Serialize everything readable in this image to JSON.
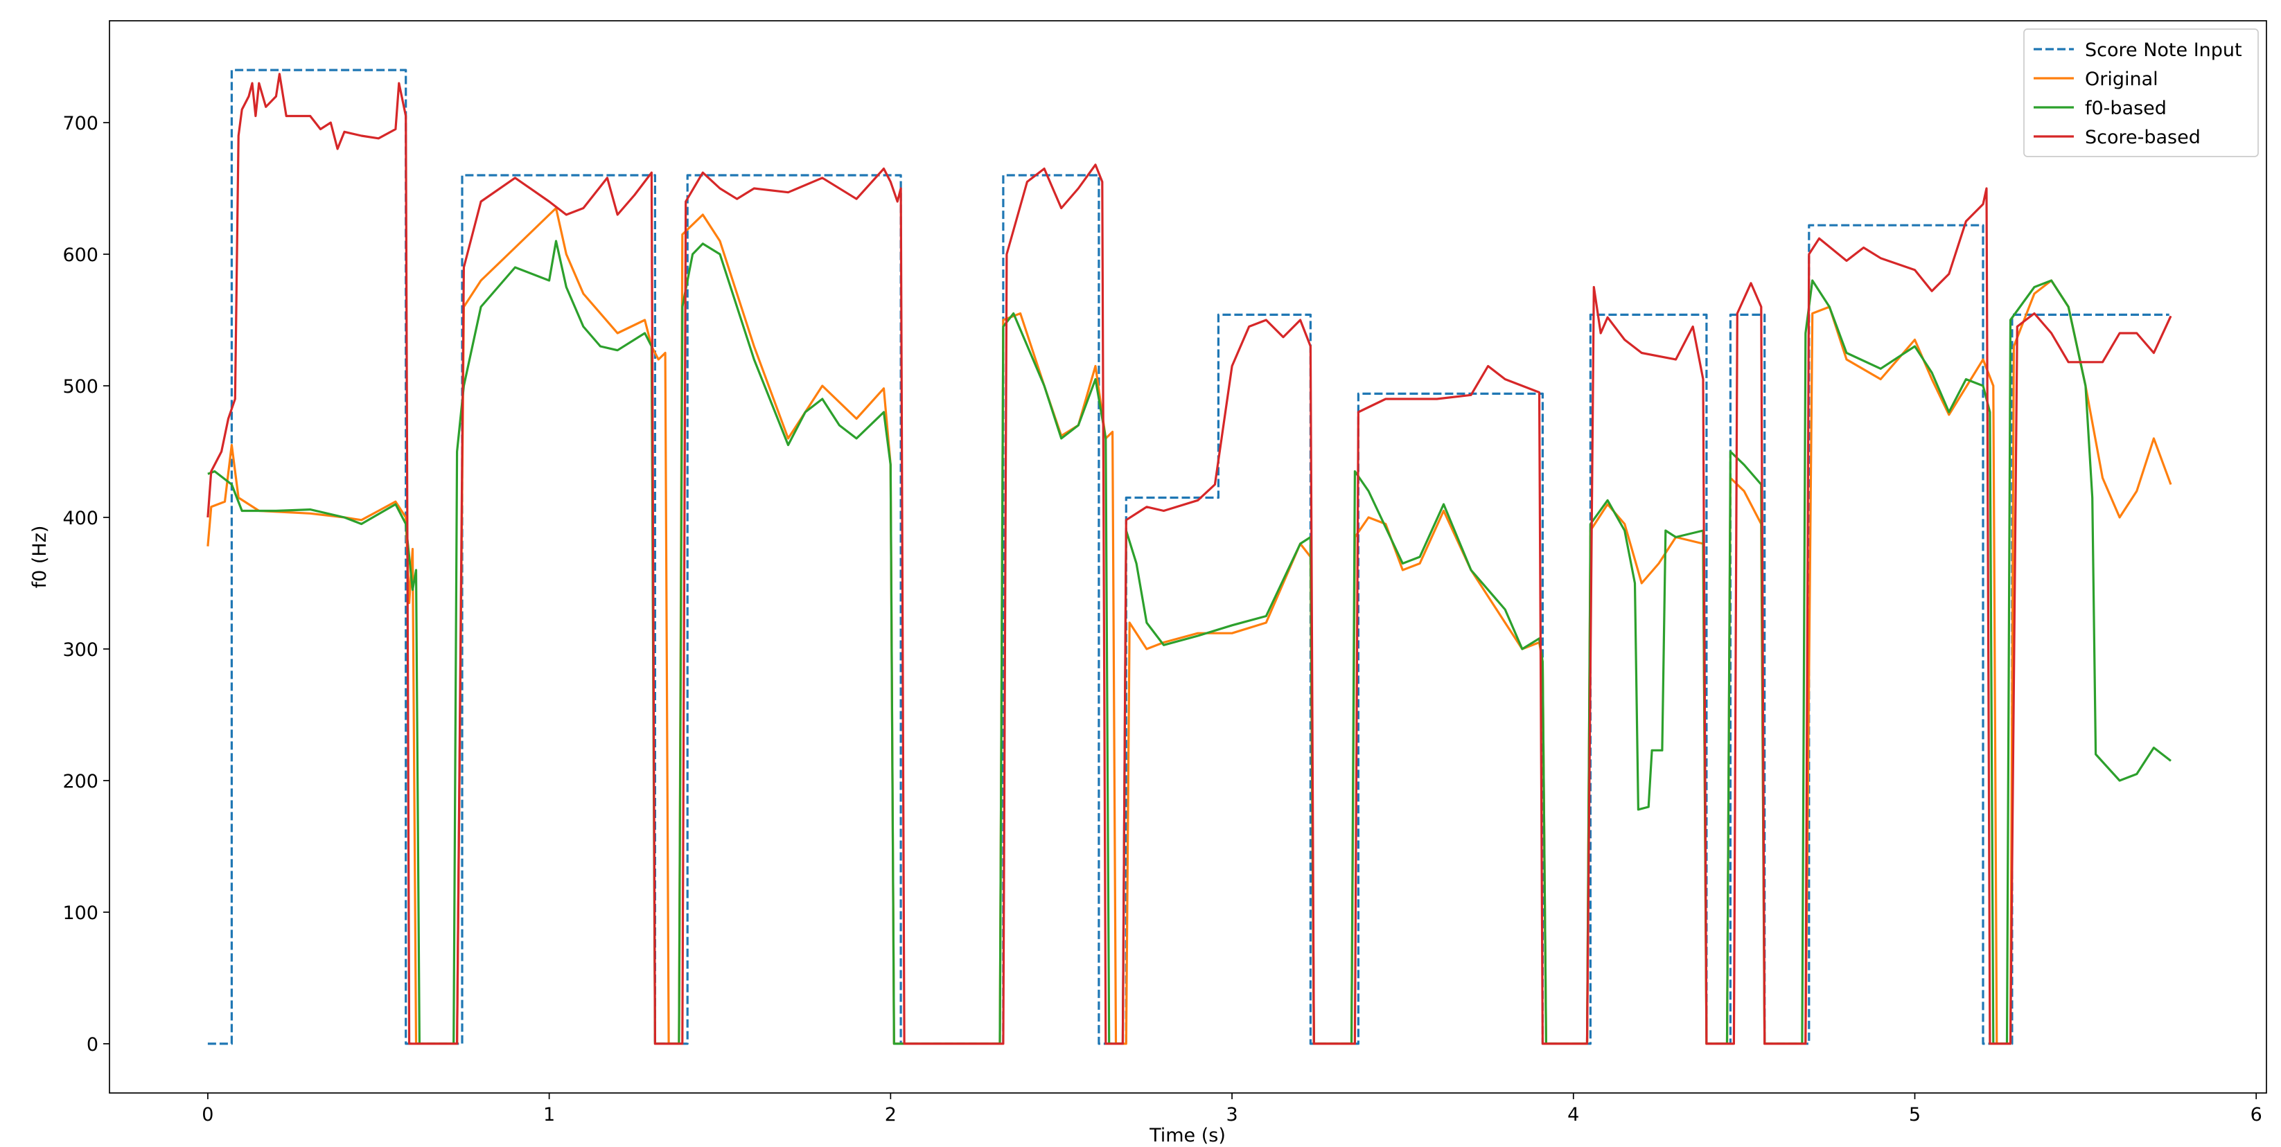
{
  "chart_data": {
    "type": "line",
    "xlabel": "Time (s)",
    "ylabel": "f0 (Hz)",
    "xlim": [
      -0.288,
      6.03
    ],
    "ylim": [
      -37.4,
      777.4
    ],
    "xticks": [
      0,
      1,
      2,
      3,
      4,
      5,
      6
    ],
    "yticks": [
      0,
      100,
      200,
      300,
      400,
      500,
      600,
      700
    ],
    "legend": "upper right",
    "series": [
      {
        "name": "Score Note Input",
        "color": "#1f77b4",
        "linestyle": "dashed",
        "x": [
          0,
          0.07,
          0.07,
          0.58,
          0.58,
          0.745,
          0.745,
          1.31,
          1.31,
          1.405,
          1.405,
          2.03,
          2.03,
          2.33,
          2.33,
          2.61,
          2.61,
          2.69,
          2.69,
          2.96,
          2.96,
          3.23,
          3.23,
          3.37,
          3.37,
          3.91,
          3.91,
          4.05,
          4.05,
          4.39,
          4.39,
          4.46,
          4.46,
          4.56,
          4.56,
          4.69,
          4.69,
          5.2,
          5.2,
          5.285,
          5.285,
          5.745
        ],
        "values": [
          0,
          0,
          740,
          740,
          0,
          0,
          660,
          660,
          0,
          0,
          660,
          660,
          0,
          0,
          660,
          660,
          0,
          0,
          415,
          415,
          554,
          554,
          0,
          0,
          494,
          494,
          0,
          0,
          554,
          554,
          0,
          0,
          554,
          554,
          0,
          0,
          622,
          622,
          0,
          0,
          554,
          554
        ]
      },
      {
        "name": "Original",
        "color": "#ff7f0e",
        "linestyle": "solid",
        "x": [
          0,
          0.01,
          0.05,
          0.07,
          0.09,
          0.15,
          0.3,
          0.4,
          0.45,
          0.5,
          0.55,
          0.58,
          0.59,
          0.6,
          0.61,
          0.73,
          0.75,
          0.8,
          0.9,
          1.0,
          1.02,
          1.05,
          1.1,
          1.2,
          1.28,
          1.3,
          1.32,
          1.34,
          1.35,
          1.38,
          1.39,
          1.45,
          1.5,
          1.6,
          1.7,
          1.8,
          1.9,
          1.98,
          2.0,
          2.01,
          2.32,
          2.33,
          2.38,
          2.45,
          2.5,
          2.55,
          2.6,
          2.63,
          2.65,
          2.66,
          2.69,
          2.7,
          2.75,
          2.8,
          2.9,
          3.0,
          3.1,
          3.2,
          3.23,
          3.24,
          3.35,
          3.36,
          3.4,
          3.45,
          3.5,
          3.55,
          3.62,
          3.7,
          3.8,
          3.85,
          3.9,
          3.91,
          3.92,
          4.04,
          4.05,
          4.1,
          4.15,
          4.2,
          4.25,
          4.3,
          4.38,
          4.39,
          4.45,
          4.46,
          4.5,
          4.55,
          4.56,
          4.68,
          4.7,
          4.75,
          4.8,
          4.9,
          5.0,
          5.05,
          5.1,
          5.2,
          5.23,
          5.24,
          5.28,
          5.29,
          5.35,
          5.4,
          5.45,
          5.5,
          5.55,
          5.6,
          5.65,
          5.7,
          5.75
        ],
        "values": [
          378,
          408,
          412,
          455,
          415,
          405,
          403,
          400,
          398,
          405,
          412,
          400,
          335,
          376,
          0,
          0,
          560,
          580,
          605,
          630,
          635,
          600,
          570,
          540,
          550,
          530,
          520,
          525,
          0,
          0,
          615,
          630,
          610,
          530,
          460,
          500,
          475,
          498,
          440,
          0,
          0,
          550,
          555,
          500,
          462,
          470,
          515,
          460,
          465,
          0,
          0,
          320,
          300,
          305,
          312,
          312,
          320,
          380,
          370,
          0,
          0,
          385,
          400,
          395,
          360,
          365,
          405,
          360,
          320,
          300,
          305,
          290,
          0,
          0,
          390,
          410,
          395,
          350,
          365,
          385,
          380,
          0,
          0,
          430,
          420,
          395,
          0,
          0,
          555,
          560,
          520,
          505,
          535,
          505,
          478,
          520,
          500,
          0,
          0,
          530,
          570,
          580,
          560,
          500,
          430,
          400,
          420,
          460,
          425
        ]
      },
      {
        "name": "f0-based",
        "color": "#2ca02c",
        "linestyle": "solid",
        "x": [
          0,
          0.02,
          0.07,
          0.1,
          0.2,
          0.3,
          0.4,
          0.45,
          0.55,
          0.58,
          0.6,
          0.61,
          0.62,
          0.72,
          0.73,
          0.75,
          0.8,
          0.9,
          1.0,
          1.02,
          1.05,
          1.1,
          1.15,
          1.2,
          1.28,
          1.3,
          1.31,
          1.38,
          1.39,
          1.42,
          1.45,
          1.5,
          1.6,
          1.7,
          1.75,
          1.8,
          1.85,
          1.9,
          1.98,
          2.0,
          2.01,
          2.32,
          2.33,
          2.36,
          2.45,
          2.5,
          2.55,
          2.6,
          2.63,
          2.64,
          2.68,
          2.69,
          2.72,
          2.75,
          2.8,
          2.9,
          3.0,
          3.1,
          3.2,
          3.23,
          3.24,
          3.35,
          3.36,
          3.4,
          3.5,
          3.55,
          3.62,
          3.7,
          3.8,
          3.85,
          3.9,
          3.91,
          3.92,
          4.04,
          4.05,
          4.1,
          4.15,
          4.18,
          4.19,
          4.22,
          4.23,
          4.26,
          4.27,
          4.3,
          4.38,
          4.39,
          4.45,
          4.46,
          4.5,
          4.55,
          4.56,
          4.67,
          4.68,
          4.7,
          4.75,
          4.8,
          4.9,
          5.0,
          5.05,
          5.1,
          5.15,
          5.2,
          5.22,
          5.23,
          5.27,
          5.28,
          5.35,
          5.4,
          5.45,
          5.5,
          5.52,
          5.53,
          5.6,
          5.65,
          5.7,
          5.75
        ],
        "values": [
          433,
          435,
          425,
          405,
          405,
          406,
          400,
          395,
          410,
          395,
          345,
          360,
          0,
          0,
          450,
          500,
          560,
          590,
          580,
          610,
          575,
          545,
          530,
          527,
          540,
          530,
          0,
          0,
          560,
          600,
          608,
          600,
          520,
          455,
          480,
          490,
          470,
          460,
          480,
          440,
          0,
          0,
          545,
          555,
          500,
          460,
          470,
          505,
          460,
          0,
          0,
          390,
          365,
          320,
          303,
          310,
          318,
          325,
          380,
          385,
          0,
          0,
          435,
          420,
          365,
          370,
          410,
          360,
          330,
          300,
          308,
          290,
          0,
          0,
          395,
          413,
          390,
          350,
          178,
          180,
          223,
          223,
          390,
          385,
          390,
          0,
          0,
          450,
          440,
          425,
          0,
          0,
          540,
          580,
          560,
          525,
          513,
          530,
          510,
          480,
          505,
          500,
          480,
          0,
          0,
          550,
          575,
          580,
          560,
          500,
          415,
          220,
          200,
          205,
          225,
          215
        ]
      },
      {
        "name": "Score-based",
        "color": "#d62728",
        "linestyle": "solid",
        "x": [
          0,
          0.01,
          0.04,
          0.06,
          0.08,
          0.09,
          0.1,
          0.12,
          0.13,
          0.14,
          0.15,
          0.17,
          0.2,
          0.21,
          0.23,
          0.3,
          0.33,
          0.36,
          0.38,
          0.4,
          0.45,
          0.5,
          0.55,
          0.56,
          0.58,
          0.59,
          0.73,
          0.75,
          0.8,
          0.9,
          1.0,
          1.05,
          1.1,
          1.17,
          1.2,
          1.25,
          1.3,
          1.31,
          1.39,
          1.4,
          1.45,
          1.5,
          1.55,
          1.6,
          1.7,
          1.8,
          1.9,
          1.98,
          2.0,
          2.02,
          2.03,
          2.04,
          2.33,
          2.34,
          2.4,
          2.45,
          2.5,
          2.55,
          2.6,
          2.62,
          2.63,
          2.68,
          2.69,
          2.75,
          2.8,
          2.9,
          2.95,
          3.0,
          3.05,
          3.1,
          3.15,
          3.2,
          3.23,
          3.24,
          3.36,
          3.37,
          3.45,
          3.6,
          3.7,
          3.75,
          3.8,
          3.85,
          3.9,
          3.91,
          4.04,
          4.06,
          4.08,
          4.1,
          4.15,
          4.2,
          4.3,
          4.35,
          4.38,
          4.39,
          4.47,
          4.48,
          4.52,
          4.55,
          4.56,
          4.68,
          4.69,
          4.72,
          4.8,
          4.85,
          4.9,
          5.0,
          5.05,
          5.1,
          5.15,
          5.2,
          5.21,
          5.22,
          5.28,
          5.3,
          5.35,
          5.4,
          5.45,
          5.55,
          5.6,
          5.65,
          5.7,
          5.75
        ],
        "values": [
          400,
          435,
          450,
          475,
          490,
          690,
          710,
          720,
          730,
          705,
          730,
          712,
          720,
          737,
          705,
          705,
          695,
          700,
          680,
          693,
          690,
          688,
          695,
          730,
          705,
          0,
          0,
          590,
          640,
          658,
          640,
          630,
          635,
          658,
          630,
          645,
          662,
          0,
          0,
          640,
          662,
          650,
          642,
          650,
          647,
          658,
          642,
          665,
          655,
          640,
          650,
          0,
          0,
          600,
          655,
          665,
          635,
          650,
          668,
          655,
          0,
          0,
          398,
          408,
          405,
          413,
          425,
          515,
          545,
          550,
          537,
          550,
          530,
          0,
          0,
          480,
          490,
          490,
          493,
          515,
          505,
          500,
          495,
          0,
          0,
          575,
          540,
          552,
          535,
          525,
          520,
          545,
          505,
          0,
          0,
          555,
          578,
          560,
          0,
          0,
          600,
          612,
          595,
          605,
          597,
          588,
          572,
          585,
          625,
          638,
          650,
          0,
          0,
          545,
          555,
          540,
          518,
          518,
          540,
          540,
          525,
          553
        ]
      }
    ]
  }
}
